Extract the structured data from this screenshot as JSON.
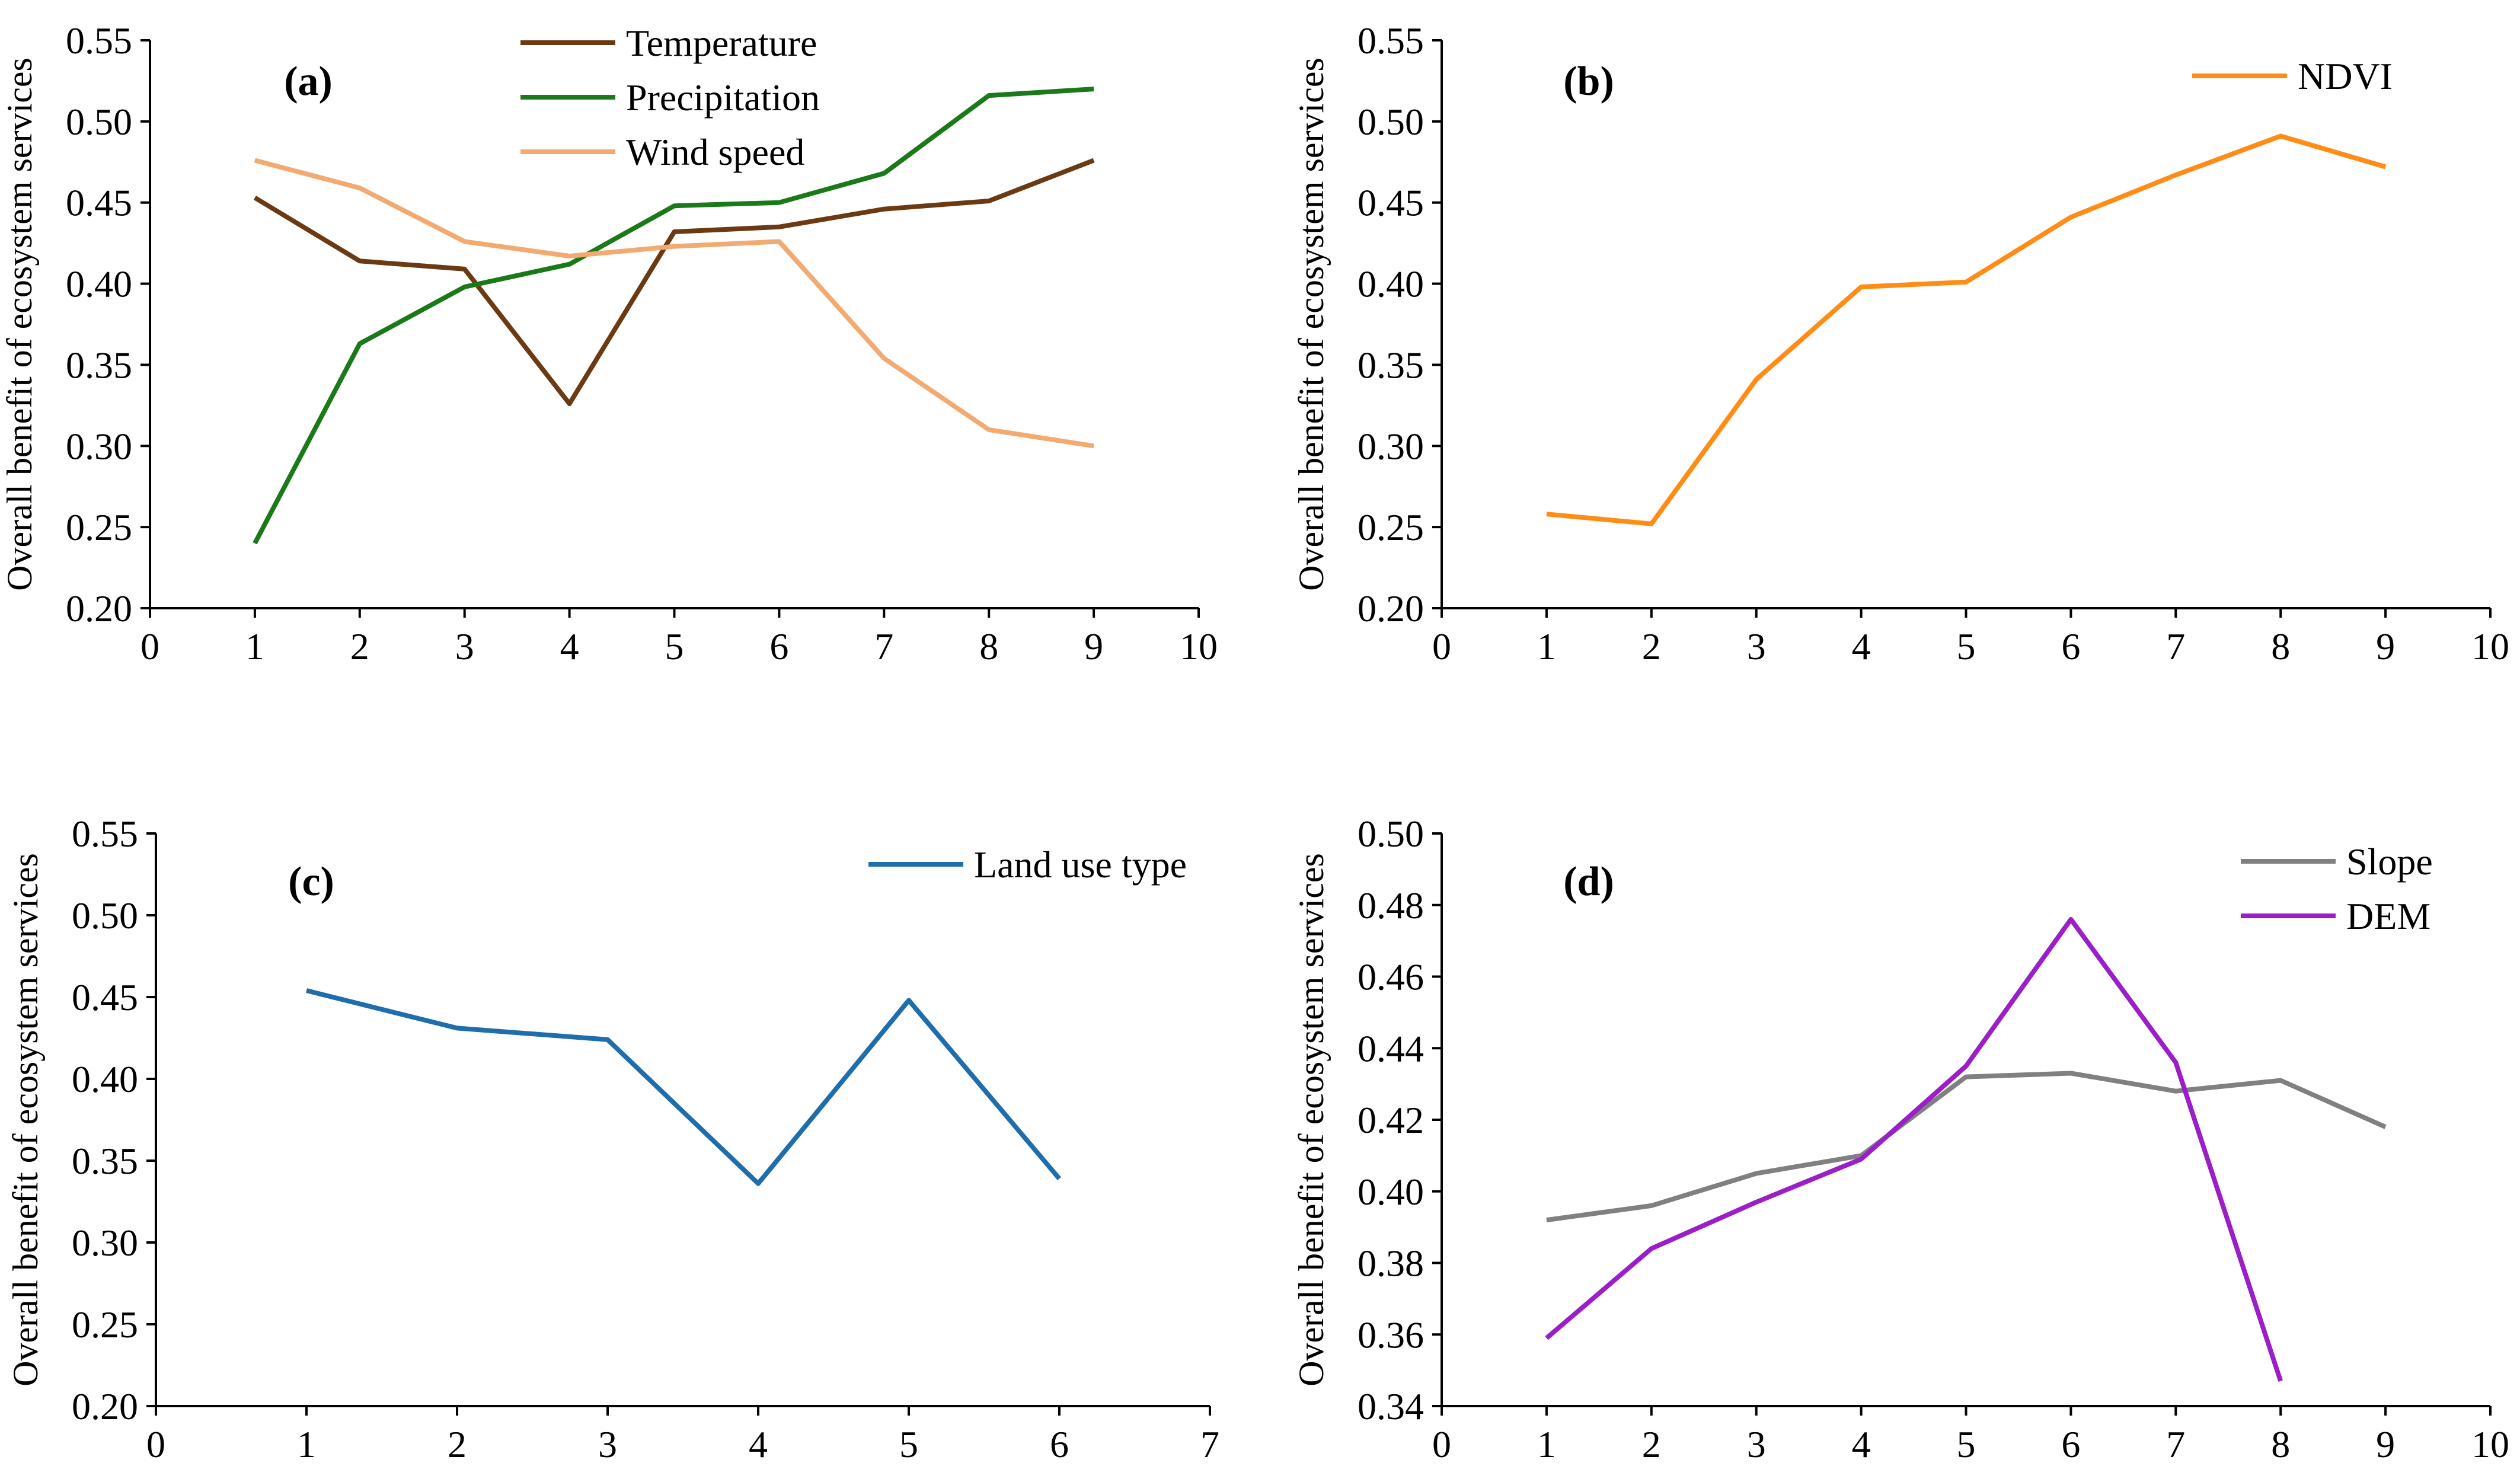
{
  "chart_data": [
    {
      "panel": "a",
      "panel_label": "(a)",
      "type": "line",
      "ylabel": "Overall benefit of ecosystem services",
      "xlim": [
        0,
        10
      ],
      "ylim": [
        0.2,
        0.55
      ],
      "xticks": [
        "0",
        "1",
        "2",
        "3",
        "4",
        "5",
        "6",
        "7",
        "8",
        "9",
        "10"
      ],
      "yticks": [
        "0.20",
        "0.25",
        "0.30",
        "0.35",
        "0.40",
        "0.45",
        "0.50",
        "0.55"
      ],
      "legend_position": "top-center",
      "series": [
        {
          "name": "Temperature",
          "color": "#6b3a12",
          "x": [
            1,
            2,
            3,
            4,
            5,
            6,
            7,
            8,
            9
          ],
          "values": [
            0.453,
            0.414,
            0.409,
            0.326,
            0.432,
            0.435,
            0.446,
            0.451,
            0.476
          ]
        },
        {
          "name": "Precipitation",
          "color": "#1a7a1a",
          "x": [
            1,
            2,
            3,
            4,
            5,
            6,
            7,
            8,
            9
          ],
          "values": [
            0.24,
            0.363,
            0.398,
            0.412,
            0.448,
            0.45,
            0.468,
            0.516,
            0.52
          ]
        },
        {
          "name": "Wind speed",
          "color": "#f2aa70",
          "x": [
            1,
            2,
            3,
            4,
            5,
            6,
            7,
            8,
            9
          ],
          "values": [
            0.476,
            0.459,
            0.426,
            0.417,
            0.423,
            0.426,
            0.354,
            0.31,
            0.3
          ]
        }
      ]
    },
    {
      "panel": "b",
      "panel_label": "(b)",
      "type": "line",
      "ylabel": "Overall benefit of ecosystem services",
      "xlim": [
        0,
        10
      ],
      "ylim": [
        0.2,
        0.55
      ],
      "xticks": [
        "0",
        "1",
        "2",
        "3",
        "4",
        "5",
        "6",
        "7",
        "8",
        "9",
        "10"
      ],
      "yticks": [
        "0.20",
        "0.25",
        "0.30",
        "0.35",
        "0.40",
        "0.45",
        "0.50",
        "0.55"
      ],
      "legend_position": "top-right",
      "series": [
        {
          "name": "NDVI",
          "color": "#ff8c14",
          "x": [
            1,
            2,
            3,
            4,
            5,
            6,
            7,
            8,
            9
          ],
          "values": [
            0.258,
            0.252,
            0.341,
            0.398,
            0.401,
            0.441,
            0.467,
            0.491,
            0.472
          ]
        }
      ]
    },
    {
      "panel": "c",
      "panel_label": "(c)",
      "type": "line",
      "ylabel": "Overall benefit of ecosystem services",
      "xlim": [
        0,
        7
      ],
      "ylim": [
        0.2,
        0.55
      ],
      "xticks": [
        "0",
        "1",
        "2",
        "3",
        "4",
        "5",
        "6",
        "7"
      ],
      "yticks": [
        "0.20",
        "0.25",
        "0.30",
        "0.35",
        "0.40",
        "0.45",
        "0.50",
        "0.55"
      ],
      "legend_position": "top-right",
      "series": [
        {
          "name": "Land use type",
          "color": "#1f6eab",
          "x": [
            1,
            2,
            3,
            4,
            5,
            6
          ],
          "values": [
            0.454,
            0.431,
            0.424,
            0.336,
            0.448,
            0.339
          ]
        }
      ]
    },
    {
      "panel": "d",
      "panel_label": "(d)",
      "type": "line",
      "ylabel": "Overall benefit of ecosystem services",
      "xlim": [
        0,
        10
      ],
      "ylim": [
        0.34,
        0.5
      ],
      "xticks": [
        "0",
        "1",
        "2",
        "3",
        "4",
        "5",
        "6",
        "7",
        "8",
        "9",
        "10"
      ],
      "yticks": [
        "0.34",
        "0.36",
        "0.38",
        "0.40",
        "0.42",
        "0.44",
        "0.46",
        "0.48",
        "0.50"
      ],
      "legend_position": "top-right",
      "series": [
        {
          "name": "Slope",
          "color": "#808080",
          "x": [
            1,
            2,
            3,
            4,
            5,
            6,
            7,
            8,
            9
          ],
          "values": [
            0.392,
            0.396,
            0.405,
            0.41,
            0.432,
            0.433,
            0.428,
            0.431,
            0.418
          ]
        },
        {
          "name": "DEM",
          "color": "#9b1ec8",
          "x": [
            1,
            2,
            3,
            4,
            5,
            6,
            7,
            8
          ],
          "values": [
            0.359,
            0.384,
            0.397,
            0.409,
            0.435,
            0.476,
            0.436,
            0.347
          ]
        }
      ]
    }
  ]
}
